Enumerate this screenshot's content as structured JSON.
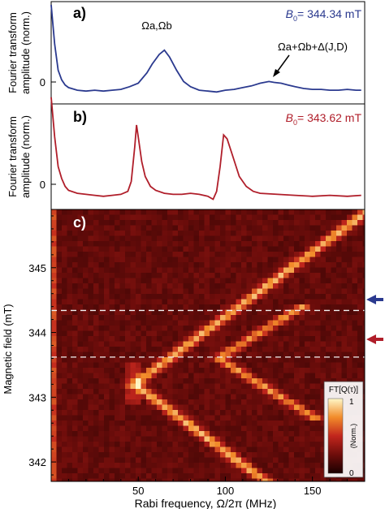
{
  "colors": {
    "blue": "#2b3a8f",
    "red": "#b01e2a",
    "heat_dark": "#3a0606",
    "heat_mid": "#b5201b",
    "heat_bright": "#ffe060",
    "dash": "#f2f2f2"
  },
  "panels": {
    "a": {
      "label": "a)",
      "ylabel_line1": "Fourier transform",
      "ylabel_line2": "amplitude (norm.)",
      "field_label_symbol": "B",
      "field_label_sub": "0",
      "field_label_value": "= 344.34 mT",
      "zero_tick": "0",
      "annotation_peak": "Ωa,Ωb",
      "annotation_sum": "Ωa+Ωb+Δ(J,D)"
    },
    "b": {
      "label": "b)",
      "ylabel_line1": "Fourier transform",
      "ylabel_line2": "amplitude (norm.)",
      "field_label_symbol": "B",
      "field_label_sub": "0",
      "field_label_value": "= 343.62 mT",
      "zero_tick": "0"
    },
    "c": {
      "label": "c)",
      "ylabel": "Magnetic field (mT)",
      "xlabel": "Rabi frequency, Ω/2π (MHz)",
      "colorbar_title": "FT[Q(τ)]",
      "colorbar_unit": "(Norm.)",
      "colorbar_max": "1",
      "colorbar_min": "0"
    }
  },
  "chart_data": [
    {
      "type": "line",
      "panel": "a",
      "series": [
        {
          "color": "#2b3a8f",
          "x": [
            0,
            2,
            4,
            6,
            8,
            10,
            15,
            20,
            25,
            30,
            35,
            40,
            45,
            50,
            55,
            58,
            62,
            65,
            68,
            72,
            76,
            80,
            85,
            90,
            95,
            100,
            105,
            110,
            115,
            120,
            125,
            128,
            132,
            136,
            140,
            145,
            150,
            155,
            160,
            165,
            170,
            175,
            178
          ],
          "y": [
            1.0,
            0.55,
            0.25,
            0.14,
            0.08,
            0.05,
            0.02,
            0.01,
            0.02,
            0.01,
            0.02,
            0.03,
            0.06,
            0.1,
            0.22,
            0.32,
            0.43,
            0.48,
            0.4,
            0.25,
            0.12,
            0.06,
            0.02,
            0.01,
            0.0,
            0.02,
            0.03,
            0.05,
            0.07,
            0.1,
            0.12,
            0.11,
            0.1,
            0.08,
            0.06,
            0.04,
            0.03,
            0.03,
            0.02,
            0.02,
            0.03,
            0.02,
            0.02
          ]
        }
      ],
      "xlim": [
        0,
        180
      ],
      "ylim": [
        -0.1,
        1.0
      ]
    },
    {
      "type": "line",
      "panel": "b",
      "series": [
        {
          "color": "#b01e2a",
          "x": [
            0,
            2,
            4,
            6,
            8,
            10,
            15,
            20,
            25,
            30,
            35,
            40,
            44,
            46,
            48,
            49,
            50,
            52,
            54,
            57,
            60,
            65,
            70,
            75,
            80,
            85,
            90,
            93,
            95,
            97,
            99,
            101,
            104,
            108,
            112,
            116,
            120,
            130,
            140,
            150,
            160,
            170,
            178
          ],
          "y": [
            1.0,
            0.6,
            0.3,
            0.18,
            0.1,
            0.06,
            0.03,
            0.02,
            0.01,
            0.0,
            0.01,
            0.02,
            0.05,
            0.15,
            0.5,
            0.72,
            0.6,
            0.35,
            0.2,
            0.1,
            0.06,
            0.03,
            0.02,
            0.02,
            0.03,
            0.02,
            0.0,
            -0.03,
            0.05,
            0.3,
            0.62,
            0.58,
            0.42,
            0.2,
            0.1,
            0.05,
            0.03,
            0.02,
            0.01,
            0.0,
            0.01,
            0.0,
            0.01
          ]
        }
      ],
      "xlim": [
        0,
        180
      ],
      "ylim": [
        -0.1,
        0.9
      ]
    },
    {
      "type": "heatmap",
      "panel": "c",
      "x_ticks": [
        "50",
        "100",
        "150"
      ],
      "x_tick_values": [
        50,
        100,
        150
      ],
      "y_ticks": [
        "342",
        "343",
        "344",
        "345"
      ],
      "y_tick_values": [
        342,
        343,
        344,
        345
      ],
      "xlim": [
        0,
        180
      ],
      "ylim": [
        341.7,
        345.9
      ],
      "dashed_fields": [
        344.34,
        343.62
      ],
      "features": [
        {
          "name": "branch",
          "vertex_field": 343.2,
          "vertex_x": 48,
          "slope": 50
        },
        {
          "name": "cap",
          "vertex_field": 343.6,
          "vertex_x": 96,
          "slope": 60
        }
      ]
    }
  ]
}
